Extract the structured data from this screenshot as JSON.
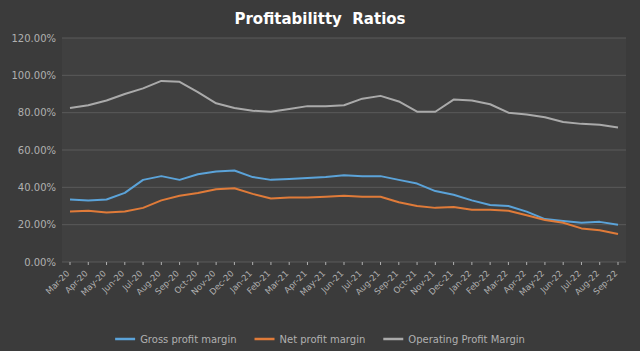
{
  "chart_data": {
    "type": "line",
    "title": "Profitabilitty  Ratios",
    "categories": [
      "Mar-20",
      "Apr-20",
      "May-20",
      "Jun-20",
      "Jul-20",
      "Aug-20",
      "Sep-20",
      "Oct-20",
      "Nov-20",
      "Dec-20",
      "Jan-21",
      "Feb-21",
      "Mar-21",
      "Apr-21",
      "May-21",
      "Jun-21",
      "Jul-21",
      "Aug-21",
      "Sep-21",
      "Oct-21",
      "Nov-21",
      "Dec-21",
      "Jan-22",
      "Feb-22",
      "Mar-22",
      "Apr-22",
      "May-22",
      "Jun-22",
      "Jul-22",
      "Aug-22",
      "Sep-22"
    ],
    "series": [
      {
        "name": "Gross profit margin",
        "color": "#5ba3d9",
        "values": [
          33.5,
          33.0,
          33.5,
          37.0,
          44.0,
          46.0,
          44.0,
          47.0,
          48.5,
          49.0,
          45.5,
          44.0,
          44.5,
          45.0,
          45.5,
          46.5,
          46.0,
          46.0,
          44.0,
          42.0,
          38.0,
          36.0,
          33.0,
          30.5,
          30.0,
          27.0,
          23.0,
          22.0,
          21.0,
          21.5,
          20.0
        ]
      },
      {
        "name": "Net profit margin",
        "color": "#e07b39",
        "values": [
          27.0,
          27.5,
          26.5,
          27.0,
          29.0,
          33.0,
          35.5,
          37.0,
          39.0,
          39.5,
          36.5,
          34.0,
          34.5,
          34.5,
          35.0,
          35.5,
          35.0,
          35.0,
          32.0,
          30.0,
          29.0,
          29.5,
          28.0,
          28.0,
          27.5,
          25.0,
          22.5,
          21.0,
          18.0,
          17.0,
          15.0
        ]
      },
      {
        "name": "Operating Profit Margin",
        "color": "#aaaaaa",
        "values": [
          82.5,
          84.0,
          86.5,
          90.0,
          93.0,
          97.0,
          96.5,
          91.0,
          85.0,
          82.5,
          81.0,
          80.5,
          82.0,
          83.5,
          83.5,
          84.0,
          87.5,
          89.0,
          86.0,
          80.5,
          80.5,
          87.0,
          86.5,
          84.5,
          80.0,
          79.0,
          77.5,
          75.0,
          74.0,
          73.5,
          72.0
        ]
      }
    ],
    "ylim": [
      0,
      120
    ],
    "yticks": [
      {
        "value": 0,
        "label": "0.00%"
      },
      {
        "value": 20,
        "label": "20.00%"
      },
      {
        "value": 40,
        "label": "40.00%"
      },
      {
        "value": 60,
        "label": "60.00%"
      },
      {
        "value": 80,
        "label": "80.00%"
      },
      {
        "value": 100,
        "label": "100.00%"
      },
      {
        "value": 120,
        "label": "120.00%"
      }
    ],
    "grid": true,
    "legend": "bottom"
  }
}
